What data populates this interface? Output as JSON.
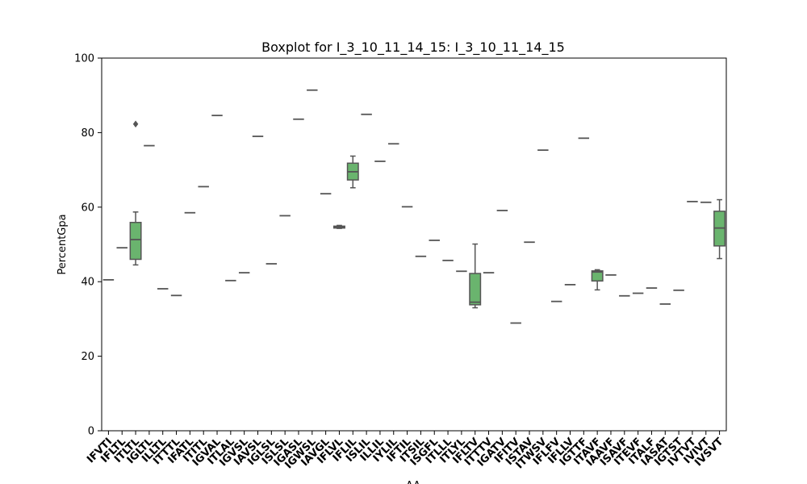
{
  "chart_data": {
    "type": "boxplot",
    "title": "Boxplot for I_3_10_11_14_15: I_3_10_11_14_15",
    "xlabel": "AA",
    "ylabel": "PercentGpa",
    "ylim": [
      0,
      100
    ],
    "yticks": [
      0,
      20,
      40,
      60,
      80,
      100
    ],
    "grid": false,
    "box_color": "#6ab46e",
    "line_color": "#555555",
    "categories": [
      "IFVTI",
      "IFLTL",
      "ITLTL",
      "IGLTL",
      "ILLTL",
      "ITTTL",
      "IFATL",
      "ITITL",
      "IGVAL",
      "ITLAL",
      "IGVSL",
      "IAVSL",
      "IGLSL",
      "ISLSL",
      "IGASL",
      "IGWSL",
      "IAVGL",
      "IFLVL",
      "IFLIL",
      "ISLIL",
      "ILLIL",
      "IYLIL",
      "IFTIL",
      "ITSIL",
      "ISGFL",
      "ITLLL",
      "ITLYL",
      "IFLTV",
      "ITTTV",
      "IGATV",
      "IFITV",
      "ISTAV",
      "ITWSV",
      "IFLFV",
      "IFLLV",
      "IGTTF",
      "ITAVF",
      "IAAVF",
      "ISAVF",
      "ITEVF",
      "ITALF",
      "IASAT",
      "IGTST",
      "IVTVT",
      "IVIVT",
      "IVSVT"
    ],
    "boxes": [
      {
        "category": "IFVTI",
        "min": 40.5,
        "q1": 40.5,
        "median": 40.5,
        "q3": 40.5,
        "max": 40.5,
        "outliers": []
      },
      {
        "category": "IFLTL",
        "min": 49.1,
        "q1": 49.1,
        "median": 49.1,
        "q3": 49.1,
        "max": 49.1,
        "outliers": []
      },
      {
        "category": "ITLTL",
        "min": 44.5,
        "q1": 46.0,
        "median": 51.3,
        "q3": 55.9,
        "max": 58.7,
        "outliers": [
          82.3
        ]
      },
      {
        "category": "IGLTL",
        "min": 76.5,
        "q1": 76.5,
        "median": 76.5,
        "q3": 76.5,
        "max": 76.5,
        "outliers": []
      },
      {
        "category": "ILLTL",
        "min": 38.1,
        "q1": 38.1,
        "median": 38.1,
        "q3": 38.1,
        "max": 38.1,
        "outliers": []
      },
      {
        "category": "ITTTL",
        "min": 36.3,
        "q1": 36.3,
        "median": 36.3,
        "q3": 36.3,
        "max": 36.3,
        "outliers": []
      },
      {
        "category": "IFATL",
        "min": 58.5,
        "q1": 58.5,
        "median": 58.5,
        "q3": 58.5,
        "max": 58.5,
        "outliers": []
      },
      {
        "category": "ITITL",
        "min": 65.5,
        "q1": 65.5,
        "median": 65.5,
        "q3": 65.5,
        "max": 65.5,
        "outliers": []
      },
      {
        "category": "IGVAL",
        "min": 84.6,
        "q1": 84.6,
        "median": 84.6,
        "q3": 84.6,
        "max": 84.6,
        "outliers": []
      },
      {
        "category": "ITLAL",
        "min": 40.3,
        "q1": 40.3,
        "median": 40.3,
        "q3": 40.3,
        "max": 40.3,
        "outliers": []
      },
      {
        "category": "IGVSL",
        "min": 42.4,
        "q1": 42.4,
        "median": 42.4,
        "q3": 42.4,
        "max": 42.4,
        "outliers": []
      },
      {
        "category": "IAVSL",
        "min": 79.0,
        "q1": 79.0,
        "median": 79.0,
        "q3": 79.0,
        "max": 79.0,
        "outliers": []
      },
      {
        "category": "IGLSL",
        "min": 44.8,
        "q1": 44.8,
        "median": 44.8,
        "q3": 44.8,
        "max": 44.8,
        "outliers": []
      },
      {
        "category": "ISLSL",
        "min": 57.7,
        "q1": 57.7,
        "median": 57.7,
        "q3": 57.7,
        "max": 57.7,
        "outliers": []
      },
      {
        "category": "IGASL",
        "min": 83.6,
        "q1": 83.6,
        "median": 83.6,
        "q3": 83.6,
        "max": 83.6,
        "outliers": []
      },
      {
        "category": "IGWSL",
        "min": 91.4,
        "q1": 91.4,
        "median": 91.4,
        "q3": 91.4,
        "max": 91.4,
        "outliers": []
      },
      {
        "category": "IAVGL",
        "min": 63.6,
        "q1": 63.6,
        "median": 63.6,
        "q3": 63.6,
        "max": 63.6,
        "outliers": []
      },
      {
        "category": "IFLVL",
        "min": 54.3,
        "q1": 54.4,
        "median": 54.6,
        "q3": 54.9,
        "max": 55.1,
        "outliers": []
      },
      {
        "category": "IFLIL",
        "min": 65.2,
        "q1": 67.3,
        "median": 69.5,
        "q3": 71.8,
        "max": 73.7,
        "outliers": []
      },
      {
        "category": "ISLIL",
        "min": 84.9,
        "q1": 84.9,
        "median": 84.9,
        "q3": 84.9,
        "max": 84.9,
        "outliers": []
      },
      {
        "category": "ILLIL",
        "min": 72.3,
        "q1": 72.3,
        "median": 72.3,
        "q3": 72.3,
        "max": 72.3,
        "outliers": []
      },
      {
        "category": "IYLIL",
        "min": 77.0,
        "q1": 77.0,
        "median": 77.0,
        "q3": 77.0,
        "max": 77.0,
        "outliers": []
      },
      {
        "category": "IFTIL",
        "min": 60.1,
        "q1": 60.1,
        "median": 60.1,
        "q3": 60.1,
        "max": 60.1,
        "outliers": []
      },
      {
        "category": "ITSIL",
        "min": 46.8,
        "q1": 46.8,
        "median": 46.8,
        "q3": 46.8,
        "max": 46.8,
        "outliers": []
      },
      {
        "category": "ISGFL",
        "min": 51.1,
        "q1": 51.1,
        "median": 51.1,
        "q3": 51.1,
        "max": 51.1,
        "outliers": []
      },
      {
        "category": "ITLLL",
        "min": 45.7,
        "q1": 45.7,
        "median": 45.7,
        "q3": 45.7,
        "max": 45.7,
        "outliers": []
      },
      {
        "category": "ITLYL",
        "min": 42.8,
        "q1": 42.8,
        "median": 42.8,
        "q3": 42.8,
        "max": 42.8,
        "outliers": []
      },
      {
        "category": "IFLTV",
        "min": 33.0,
        "q1": 33.8,
        "median": 34.5,
        "q3": 42.2,
        "max": 50.1,
        "outliers": []
      },
      {
        "category": "ITTTV",
        "min": 42.4,
        "q1": 42.4,
        "median": 42.4,
        "q3": 42.4,
        "max": 42.4,
        "outliers": []
      },
      {
        "category": "IGATV",
        "min": 59.1,
        "q1": 59.1,
        "median": 59.1,
        "q3": 59.1,
        "max": 59.1,
        "outliers": []
      },
      {
        "category": "IFITV",
        "min": 28.9,
        "q1": 28.9,
        "median": 28.9,
        "q3": 28.9,
        "max": 28.9,
        "outliers": []
      },
      {
        "category": "ISTAV",
        "min": 50.6,
        "q1": 50.6,
        "median": 50.6,
        "q3": 50.6,
        "max": 50.6,
        "outliers": []
      },
      {
        "category": "ITWSV",
        "min": 75.3,
        "q1": 75.3,
        "median": 75.3,
        "q3": 75.3,
        "max": 75.3,
        "outliers": []
      },
      {
        "category": "IFLFV",
        "min": 34.7,
        "q1": 34.7,
        "median": 34.7,
        "q3": 34.7,
        "max": 34.7,
        "outliers": []
      },
      {
        "category": "IFLLV",
        "min": 39.2,
        "q1": 39.2,
        "median": 39.2,
        "q3": 39.2,
        "max": 39.2,
        "outliers": []
      },
      {
        "category": "IGTTF",
        "min": 78.5,
        "q1": 78.5,
        "median": 78.5,
        "q3": 78.5,
        "max": 78.5,
        "outliers": []
      },
      {
        "category": "ITAVF",
        "min": 37.8,
        "q1": 40.2,
        "median": 42.6,
        "q3": 42.9,
        "max": 43.2,
        "outliers": []
      },
      {
        "category": "IAAVF",
        "min": 41.8,
        "q1": 41.8,
        "median": 41.8,
        "q3": 41.8,
        "max": 41.8,
        "outliers": []
      },
      {
        "category": "ISAVF",
        "min": 36.2,
        "q1": 36.2,
        "median": 36.2,
        "q3": 36.2,
        "max": 36.2,
        "outliers": []
      },
      {
        "category": "ITEVF",
        "min": 36.9,
        "q1": 36.9,
        "median": 36.9,
        "q3": 36.9,
        "max": 36.9,
        "outliers": []
      },
      {
        "category": "ITALF",
        "min": 38.3,
        "q1": 38.3,
        "median": 38.3,
        "q3": 38.3,
        "max": 38.3,
        "outliers": []
      },
      {
        "category": "IASAT",
        "min": 34.0,
        "q1": 34.0,
        "median": 34.0,
        "q3": 34.0,
        "max": 34.0,
        "outliers": []
      },
      {
        "category": "IGTST",
        "min": 37.7,
        "q1": 37.7,
        "median": 37.7,
        "q3": 37.7,
        "max": 37.7,
        "outliers": []
      },
      {
        "category": "IVTVT",
        "min": 61.5,
        "q1": 61.5,
        "median": 61.5,
        "q3": 61.5,
        "max": 61.5,
        "outliers": []
      },
      {
        "category": "IVIVT",
        "min": 61.3,
        "q1": 61.3,
        "median": 61.3,
        "q3": 61.3,
        "max": 61.3,
        "outliers": []
      },
      {
        "category": "IVSVT",
        "min": 46.2,
        "q1": 49.6,
        "median": 54.4,
        "q3": 58.9,
        "max": 62.0,
        "outliers": []
      }
    ]
  }
}
